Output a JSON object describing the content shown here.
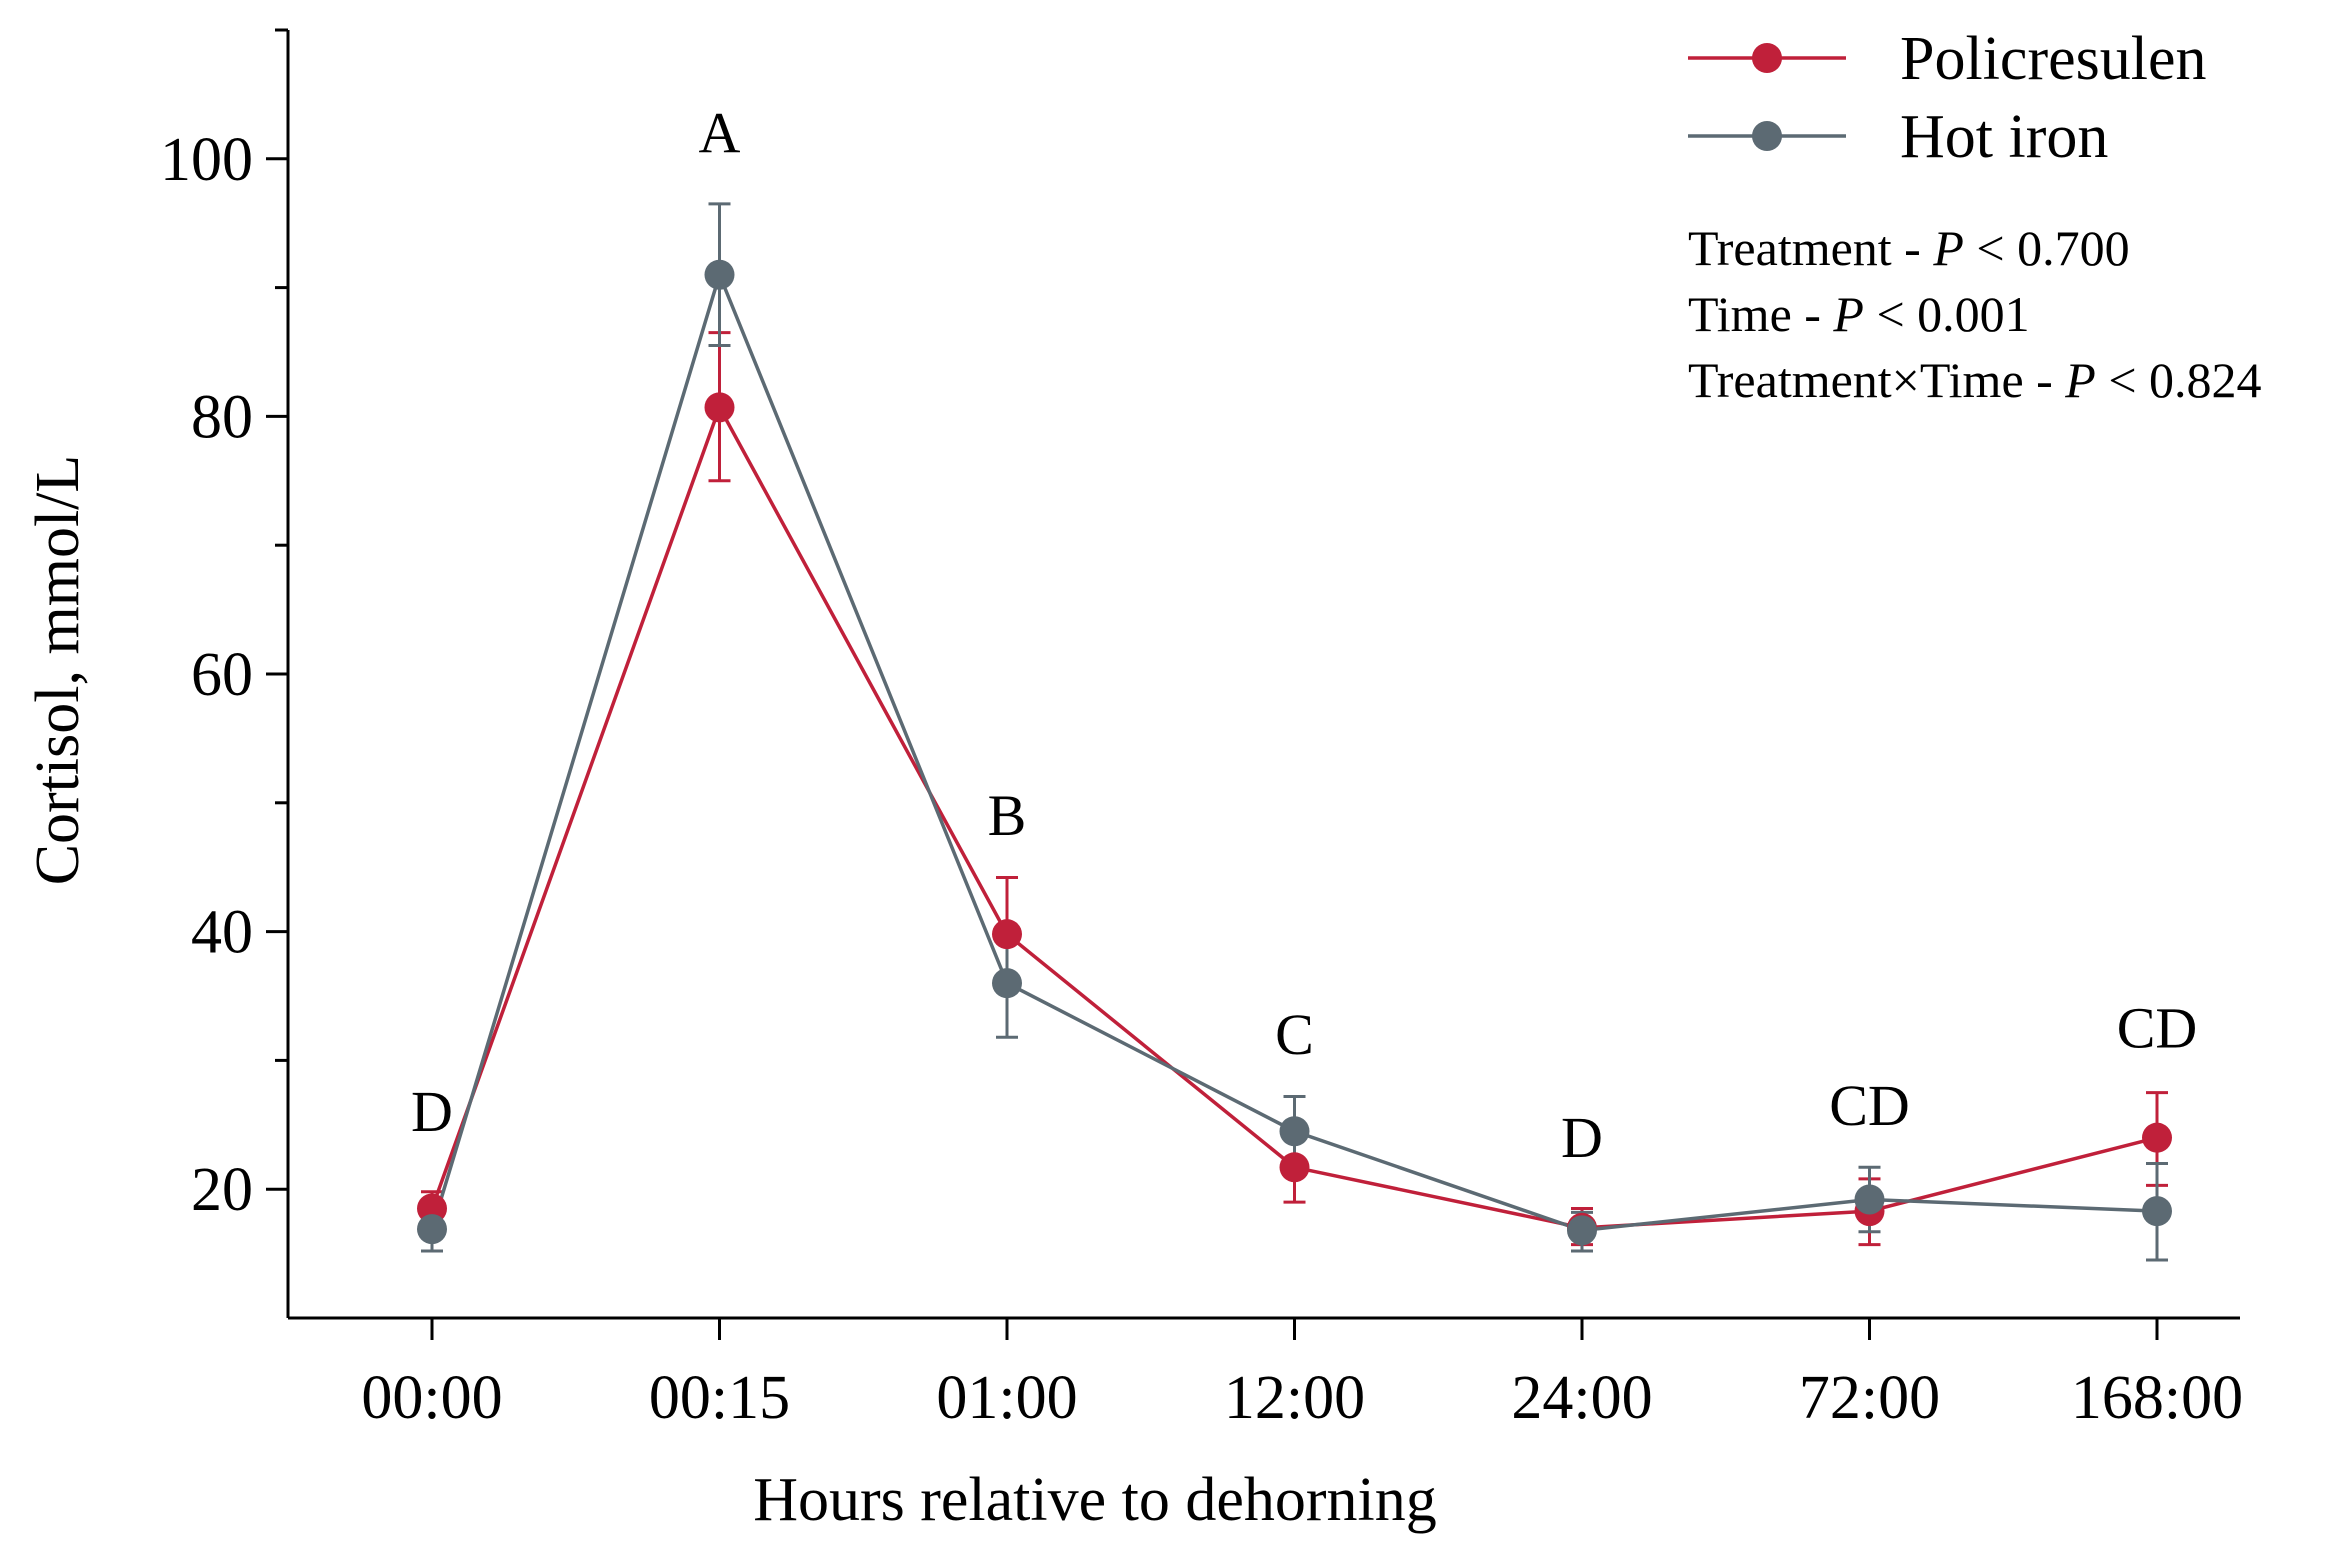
{
  "chart_data": {
    "type": "line",
    "title": "",
    "xlabel": "Hours relative to dehorning",
    "ylabel": "Cortisol, mmol/L",
    "categories": [
      "00:00",
      "00:15",
      "01:00",
      "12:00",
      "24:00",
      "72:00",
      "168:00"
    ],
    "ylim": [
      10,
      110
    ],
    "yticks": [
      20,
      40,
      60,
      80,
      100
    ],
    "ytick_labels": [
      "20",
      "40",
      "60",
      "80",
      "100"
    ],
    "series": [
      {
        "name": "Policresulen",
        "color": "#c0203a",
        "values": [
          18.5,
          80.7,
          39.8,
          21.7,
          17.0,
          18.3,
          24.0
        ],
        "err_low": [
          17.3,
          75.0,
          35.5,
          19.0,
          15.7,
          15.7,
          20.3
        ],
        "err_high": [
          19.8,
          86.5,
          44.2,
          24.5,
          18.5,
          20.8,
          27.5
        ]
      },
      {
        "name": "Hot iron",
        "color": "#5c6a73",
        "values": [
          16.9,
          91.0,
          36.0,
          24.5,
          16.8,
          19.2,
          18.3
        ],
        "err_low": [
          15.2,
          85.5,
          31.8,
          22.0,
          15.2,
          16.7,
          14.5
        ],
        "err_high": [
          18.5,
          96.5,
          40.2,
          27.2,
          18.2,
          21.7,
          22.0
        ]
      }
    ],
    "significance_letters": [
      {
        "category": "00:00",
        "label": "D",
        "y": 24.5
      },
      {
        "category": "00:15",
        "label": "A",
        "y": 100.5
      },
      {
        "category": "01:00",
        "label": "B",
        "y": 47.5
      },
      {
        "category": "12:00",
        "label": "C",
        "y": 30.5
      },
      {
        "category": "24:00",
        "label": "D",
        "y": 22.5
      },
      {
        "category": "72:00",
        "label": "CD",
        "y": 25.0
      },
      {
        "category": "168:00",
        "label": "CD",
        "y": 31.0
      }
    ],
    "legend_position": "top-right",
    "stats": [
      {
        "prefix": "Treatment - ",
        "p": "P",
        "suffix": " < 0.700"
      },
      {
        "prefix": "Time - ",
        "p": "P",
        "suffix": " < 0.001"
      },
      {
        "prefix": "Treatment×Time - ",
        "p": "P",
        "suffix": " < 0.824"
      }
    ]
  }
}
